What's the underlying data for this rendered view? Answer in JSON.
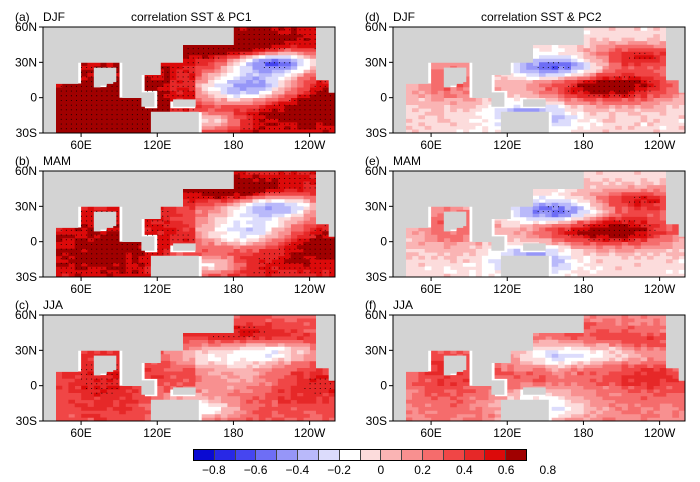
{
  "figure": {
    "panels": [
      {
        "id": "a",
        "tag": "(a)",
        "season": "DJF",
        "title": "correlation SST & PC1",
        "pattern": "pc1",
        "mix": 0.0
      },
      {
        "id": "b",
        "tag": "(b)",
        "season": "MAM",
        "title": "",
        "pattern": "pc1",
        "mix": 0.15
      },
      {
        "id": "c",
        "tag": "(c)",
        "season": "JJA",
        "title": "",
        "pattern": "pc1",
        "mix": 0.45
      },
      {
        "id": "d",
        "tag": "(d)",
        "season": "DJF",
        "title": "correlation SST & PC2",
        "pattern": "pc2",
        "mix": 0.0
      },
      {
        "id": "e",
        "tag": "(e)",
        "season": "MAM",
        "title": "",
        "pattern": "pc2",
        "mix": 0.0
      },
      {
        "id": "f",
        "tag": "(f)",
        "season": "JJA",
        "title": "",
        "pattern": "pc2",
        "mix": 0.35
      }
    ],
    "lat_ticks": [
      "60N",
      "30N",
      "0",
      "30S"
    ],
    "lon_ticks": [
      "60E",
      "120E",
      "180",
      "120W"
    ],
    "colorbar": {
      "labels": [
        "−0.8",
        "−0.6",
        "−0.4",
        "−0.2",
        "0",
        "0.2",
        "0.4",
        "0.6",
        "0.8"
      ],
      "colors": [
        "#0a0ad2",
        "#2828e6",
        "#4646f0",
        "#6e6ef5",
        "#9696f8",
        "#b9b9fa",
        "#dcdcfc",
        "#ffffff",
        "#fcdcdc",
        "#fab4b4",
        "#f89090",
        "#f56c6c",
        "#f04646",
        "#e62828",
        "#dc0a0a",
        "#a00000"
      ]
    }
  }
}
